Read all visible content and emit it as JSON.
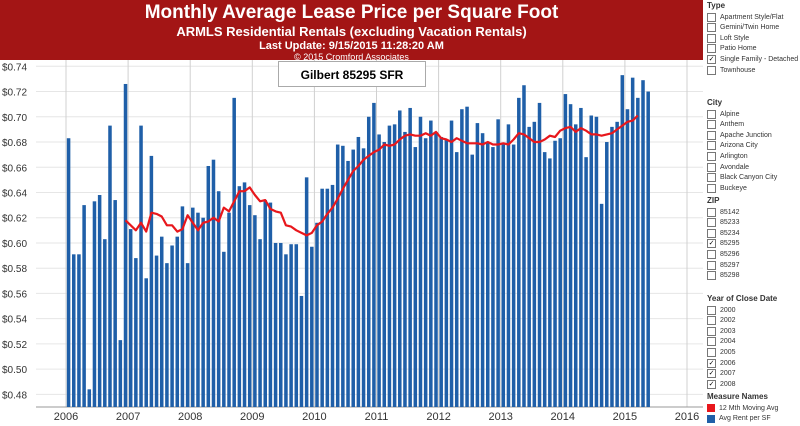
{
  "header": {
    "title": "Monthly Average Lease Price per Square Foot",
    "subtitle": "ARMLS Residential Rentals (excluding Vacation Rentals)",
    "update": "Last Update: 9/15/2015 11:28:20 AM",
    "copyright": "© 2015 Cromford Associates"
  },
  "legend_label": "Gilbert 85295 SFR",
  "colors": {
    "bar": "#1f5fa8",
    "line": "#e8171c",
    "header_bg": "#a31515"
  },
  "filters": {
    "type": {
      "title": "Type",
      "items": [
        {
          "label": "Apartment Style/Flat",
          "checked": false
        },
        {
          "label": "Gemini/Twin Home",
          "checked": false
        },
        {
          "label": "Loft Style",
          "checked": false
        },
        {
          "label": "Patio Home",
          "checked": false
        },
        {
          "label": "Single Family - Detached",
          "checked": true
        },
        {
          "label": "Townhouse",
          "checked": false
        }
      ]
    },
    "city": {
      "title": "City",
      "items": [
        {
          "label": "Alpine",
          "checked": false
        },
        {
          "label": "Anthem",
          "checked": false
        },
        {
          "label": "Apache Junction",
          "checked": false
        },
        {
          "label": "Arizona City",
          "checked": false
        },
        {
          "label": "Arlington",
          "checked": false
        },
        {
          "label": "Avondale",
          "checked": false
        },
        {
          "label": "Black Canyon City",
          "checked": false
        },
        {
          "label": "Buckeye",
          "checked": false
        }
      ]
    },
    "zip": {
      "title": "ZIP",
      "items": [
        {
          "label": "85142",
          "checked": false
        },
        {
          "label": "85233",
          "checked": false
        },
        {
          "label": "85234",
          "checked": false
        },
        {
          "label": "85295",
          "checked": true
        },
        {
          "label": "85296",
          "checked": false
        },
        {
          "label": "85297",
          "checked": false
        },
        {
          "label": "85298",
          "checked": false
        }
      ]
    },
    "year": {
      "title": "Year of Close Date",
      "items": [
        {
          "label": "2000",
          "checked": false
        },
        {
          "label": "2002",
          "checked": false
        },
        {
          "label": "2003",
          "checked": false
        },
        {
          "label": "2004",
          "checked": false
        },
        {
          "label": "2005",
          "checked": false
        },
        {
          "label": "2006",
          "checked": true
        },
        {
          "label": "2007",
          "checked": true
        },
        {
          "label": "2008",
          "checked": true
        }
      ]
    },
    "measures": {
      "title": "Measure Names",
      "items": [
        {
          "label": "12 Mth Moving Avg",
          "color": "#e8171c"
        },
        {
          "label": "Avg Rent per SF",
          "color": "#1f5fa8"
        }
      ]
    }
  },
  "chart_data": {
    "type": "bar",
    "title": "Gilbert 85295 SFR",
    "x_start": "2006-01",
    "x_ticks": [
      "2006",
      "2007",
      "2008",
      "2009",
      "2010",
      "2011",
      "2012",
      "2013",
      "2014",
      "2015",
      "2016"
    ],
    "ylim": [
      0.47,
      0.745
    ],
    "y_ticks": [
      0.48,
      0.5,
      0.52,
      0.54,
      0.56,
      0.58,
      0.6,
      0.62,
      0.64,
      0.66,
      0.68,
      0.7,
      0.72,
      0.74
    ],
    "series": [
      {
        "name": "Avg Rent per SF",
        "type": "bar",
        "values": [
          0.683,
          0.591,
          0.591,
          0.63,
          0.484,
          0.633,
          0.638,
          0.603,
          0.693,
          0.634,
          0.523,
          0.726,
          0.611,
          0.588,
          0.693,
          0.572,
          0.669,
          0.59,
          0.605,
          0.584,
          0.598,
          0.605,
          0.629,
          0.584,
          0.628,
          0.624,
          0.62,
          0.661,
          0.666,
          0.641,
          0.593,
          0.624,
          0.715,
          0.645,
          0.648,
          0.63,
          0.622,
          0.603,
          0.634,
          0.632,
          0.6,
          0.6,
          0.591,
          0.599,
          0.599,
          0.558,
          0.652,
          0.597,
          0.616,
          0.643,
          0.643,
          0.646,
          0.678,
          0.677,
          0.665,
          0.674,
          0.684,
          0.675,
          0.7,
          0.711,
          0.686,
          0.68,
          0.693,
          0.694,
          0.705,
          0.688,
          0.707,
          0.676,
          0.7,
          0.683,
          0.697,
          0.688,
          0.684,
          0.682,
          0.697,
          0.672,
          0.706,
          0.708,
          0.67,
          0.695,
          0.687,
          0.68,
          0.676,
          0.698,
          0.678,
          0.694,
          0.678,
          0.715,
          0.725,
          0.692,
          0.696,
          0.711,
          0.672,
          0.667,
          0.681,
          0.683,
          0.718,
          0.71,
          0.694,
          0.707,
          0.668,
          0.701,
          0.7,
          0.631,
          0.68,
          0.692,
          0.696,
          0.733,
          0.706,
          0.731,
          0.715,
          0.729,
          0.72
        ]
      },
      {
        "name": "12 Mth Moving Avg",
        "type": "line",
        "start_index": 11,
        "values": [
          0.618,
          0.614,
          0.61,
          0.616,
          0.609,
          0.624,
          0.623,
          0.621,
          0.614,
          0.614,
          0.609,
          0.611,
          0.622,
          0.616,
          0.61,
          0.616,
          0.617,
          0.62,
          0.617,
          0.628,
          0.625,
          0.633,
          0.641,
          0.641,
          0.644,
          0.638,
          0.633,
          0.634,
          0.627,
          0.625,
          0.624,
          0.614,
          0.613,
          0.61,
          0.608,
          0.606,
          0.608,
          0.614,
          0.617,
          0.623,
          0.628,
          0.635,
          0.643,
          0.65,
          0.657,
          0.661,
          0.666,
          0.669,
          0.672,
          0.674,
          0.678,
          0.677,
          0.678,
          0.682,
          0.685,
          0.686,
          0.685,
          0.685,
          0.687,
          0.685,
          0.688,
          0.683,
          0.682,
          0.68,
          0.683,
          0.681,
          0.679,
          0.679,
          0.679,
          0.678,
          0.68,
          0.678,
          0.678,
          0.679,
          0.678,
          0.682,
          0.687,
          0.686,
          0.683,
          0.68,
          0.68,
          0.682,
          0.685,
          0.684,
          0.689,
          0.691,
          0.692,
          0.688,
          0.691,
          0.689,
          0.686,
          0.686,
          0.685,
          0.686,
          0.687,
          0.69,
          0.693,
          0.696,
          0.697,
          0.701
        ]
      }
    ]
  }
}
